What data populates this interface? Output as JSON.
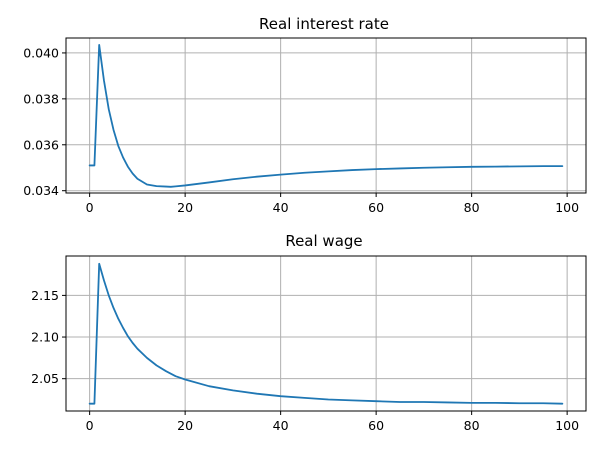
{
  "chart_data": [
    {
      "type": "line",
      "title": "Real interest rate",
      "xlabel": "",
      "ylabel": "",
      "xlim": [
        -4.95,
        103.95
      ],
      "ylim": [
        0.0339,
        0.04065
      ],
      "xticks": [
        0,
        20,
        40,
        60,
        80,
        100
      ],
      "xtick_labels": [
        "0",
        "20",
        "40",
        "60",
        "80",
        "100"
      ],
      "yticks": [
        0.034,
        0.036,
        0.038,
        0.04
      ],
      "ytick_labels": [
        "0.034",
        "0.036",
        "0.038",
        "0.040"
      ],
      "grid": true,
      "series": [
        {
          "color": "#1f77b4",
          "x": [
            0,
            1,
            2,
            3,
            4,
            5,
            6,
            7,
            8,
            9,
            10,
            12,
            14,
            16,
            17,
            18,
            20,
            25,
            30,
            35,
            40,
            45,
            50,
            55,
            60,
            65,
            70,
            75,
            80,
            85,
            90,
            95,
            99
          ],
          "y": [
            0.0351,
            0.0351,
            0.04035,
            0.0388,
            0.03755,
            0.03665,
            0.03595,
            0.03545,
            0.03505,
            0.03475,
            0.03452,
            0.03427,
            0.0342,
            0.03418,
            0.03417,
            0.03419,
            0.03423,
            0.03436,
            0.0345,
            0.03461,
            0.0347,
            0.03478,
            0.03484,
            0.0349,
            0.03494,
            0.03497,
            0.035,
            0.03502,
            0.03504,
            0.03505,
            0.03506,
            0.03507,
            0.03507
          ]
        }
      ]
    },
    {
      "type": "line",
      "title": "Real wage",
      "xlabel": "",
      "ylabel": "",
      "xlim": [
        -4.95,
        103.95
      ],
      "ylim": [
        2.0112,
        2.1973
      ],
      "xticks": [
        0,
        20,
        40,
        60,
        80,
        100
      ],
      "xtick_labels": [
        "0",
        "20",
        "40",
        "60",
        "80",
        "100"
      ],
      "yticks": [
        2.05,
        2.1,
        2.15
      ],
      "ytick_labels": [
        "2.05",
        "2.10",
        "2.15"
      ],
      "grid": true,
      "series": [
        {
          "color": "#1f77b4",
          "x": [
            0,
            1,
            2,
            3,
            4,
            5,
            6,
            7,
            8,
            9,
            10,
            12,
            14,
            16,
            18,
            20,
            25,
            30,
            35,
            40,
            45,
            50,
            55,
            60,
            65,
            70,
            75,
            80,
            85,
            90,
            95,
            99
          ],
          "y": [
            2.02,
            2.02,
            2.188,
            2.168,
            2.15,
            2.135,
            2.122,
            2.111,
            2.101,
            2.093,
            2.086,
            2.075,
            2.066,
            2.059,
            2.053,
            2.049,
            2.041,
            2.036,
            2.032,
            2.029,
            2.027,
            2.025,
            2.024,
            2.023,
            2.022,
            2.022,
            2.0215,
            2.021,
            2.021,
            2.0205,
            2.0205,
            2.02
          ]
        }
      ]
    }
  ]
}
